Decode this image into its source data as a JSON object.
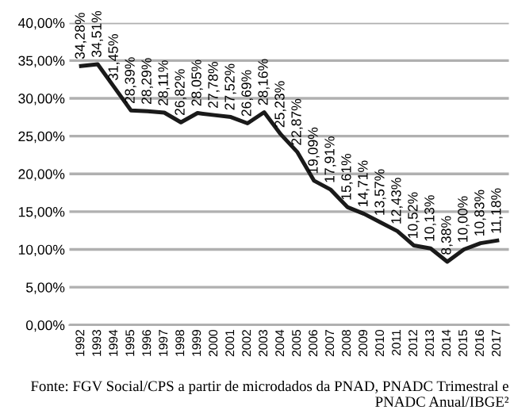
{
  "chart_data": {
    "type": "line",
    "categories": [
      "1992",
      "1993",
      "1994",
      "1995",
      "1996",
      "1997",
      "1998",
      "1999",
      "2000",
      "2001",
      "2002",
      "2003",
      "2004",
      "2005",
      "2006",
      "2007",
      "2008",
      "2009",
      "2010",
      "2011",
      "2012",
      "2013",
      "2014",
      "2015",
      "2016",
      "2017"
    ],
    "series": [
      {
        "color": "#1a1a1a",
        "values": [
          34.28,
          34.51,
          31.45,
          28.39,
          28.29,
          28.11,
          26.82,
          28.05,
          27.78,
          27.52,
          26.69,
          28.16,
          25.23,
          22.87,
          19.09,
          17.91,
          15.61,
          14.71,
          13.57,
          12.43,
          10.52,
          10.13,
          8.38,
          10.0,
          10.83,
          11.18
        ],
        "value_labels": [
          "34,28%",
          "34,51%",
          "31,45%",
          "28,39%",
          "28,29%",
          "28,11%",
          "26,82%",
          "28,05%",
          "27,78%",
          "27,52%",
          "26,69%",
          "28,16%",
          "25,23%",
          "22,87%",
          "19,09%",
          "17,91%",
          "15,61%",
          "14,71%",
          "13,57%",
          "12,43%",
          "10,52%",
          "10,13%",
          "8,38%",
          "10,00%",
          "10,83%",
          "11,18%"
        ]
      }
    ],
    "ylim": [
      0,
      40
    ],
    "yticks": [
      {
        "value": 0,
        "label": "0,00%"
      },
      {
        "value": 5,
        "label": "5,00%"
      },
      {
        "value": 10,
        "label": "10,00%"
      },
      {
        "value": 15,
        "label": "15,00%"
      },
      {
        "value": 20,
        "label": "20,00%"
      },
      {
        "value": 25,
        "label": "25,00%"
      },
      {
        "value": 30,
        "label": "30,00%"
      },
      {
        "value": 35,
        "label": "35,00%"
      },
      {
        "value": 40,
        "label": "40,00%"
      }
    ],
    "grid": "y",
    "legend": false,
    "marker": "none",
    "line_style": "solid",
    "annotations": [
      "Fonte: FGV Social/CPS a partir de microdados da PNAD, PNADC Trimestral e PNADC Anual/IBGE²"
    ]
  }
}
